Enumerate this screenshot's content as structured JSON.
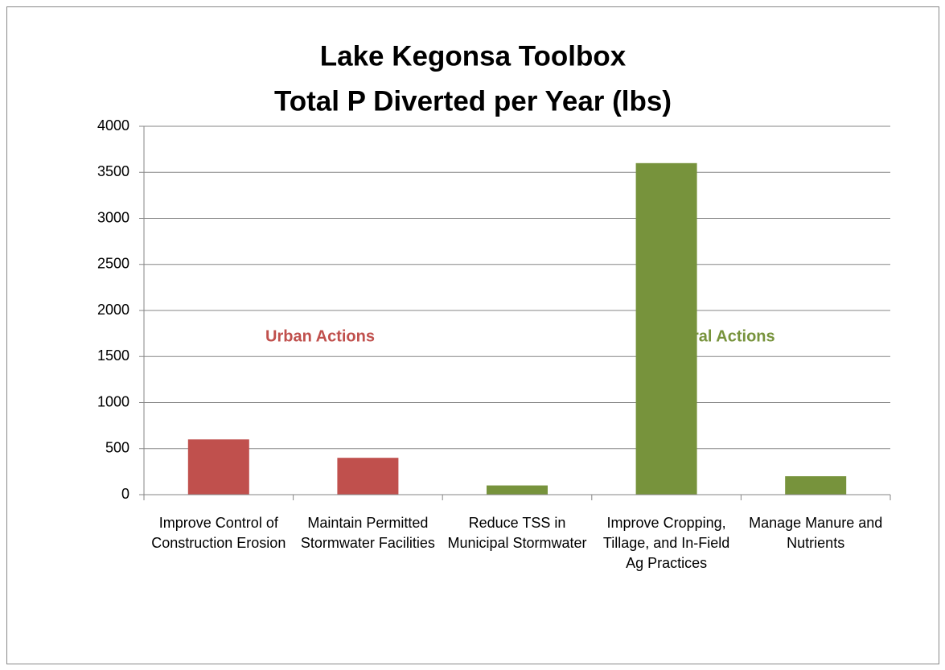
{
  "chart_data": {
    "type": "bar",
    "title": [
      "Lake Kegonsa Toolbox",
      "Total P Diverted per Year (lbs)"
    ],
    "categories": [
      "Improve Control of Construction Erosion",
      "Maintain Permitted Stormwater Facilities",
      "Reduce TSS in Municipal Stormwater",
      "Improve Cropping, Tillage, and In-Field Ag Practices",
      "Manage Manure and Nutrients"
    ],
    "values": [
      600,
      400,
      100,
      3600,
      200
    ],
    "colors": [
      "#c0504d",
      "#c0504d",
      "#77933c",
      "#77933c",
      "#77933c"
    ],
    "ylim": [
      0,
      4000
    ],
    "yticks": [
      0,
      500,
      1000,
      1500,
      2000,
      2500,
      3000,
      3500,
      4000
    ],
    "grid": true,
    "annotations": [
      {
        "text": "Urban Actions",
        "color": "#c0504d"
      },
      {
        "text": "Rural Actions",
        "color": "#77933c"
      }
    ]
  }
}
